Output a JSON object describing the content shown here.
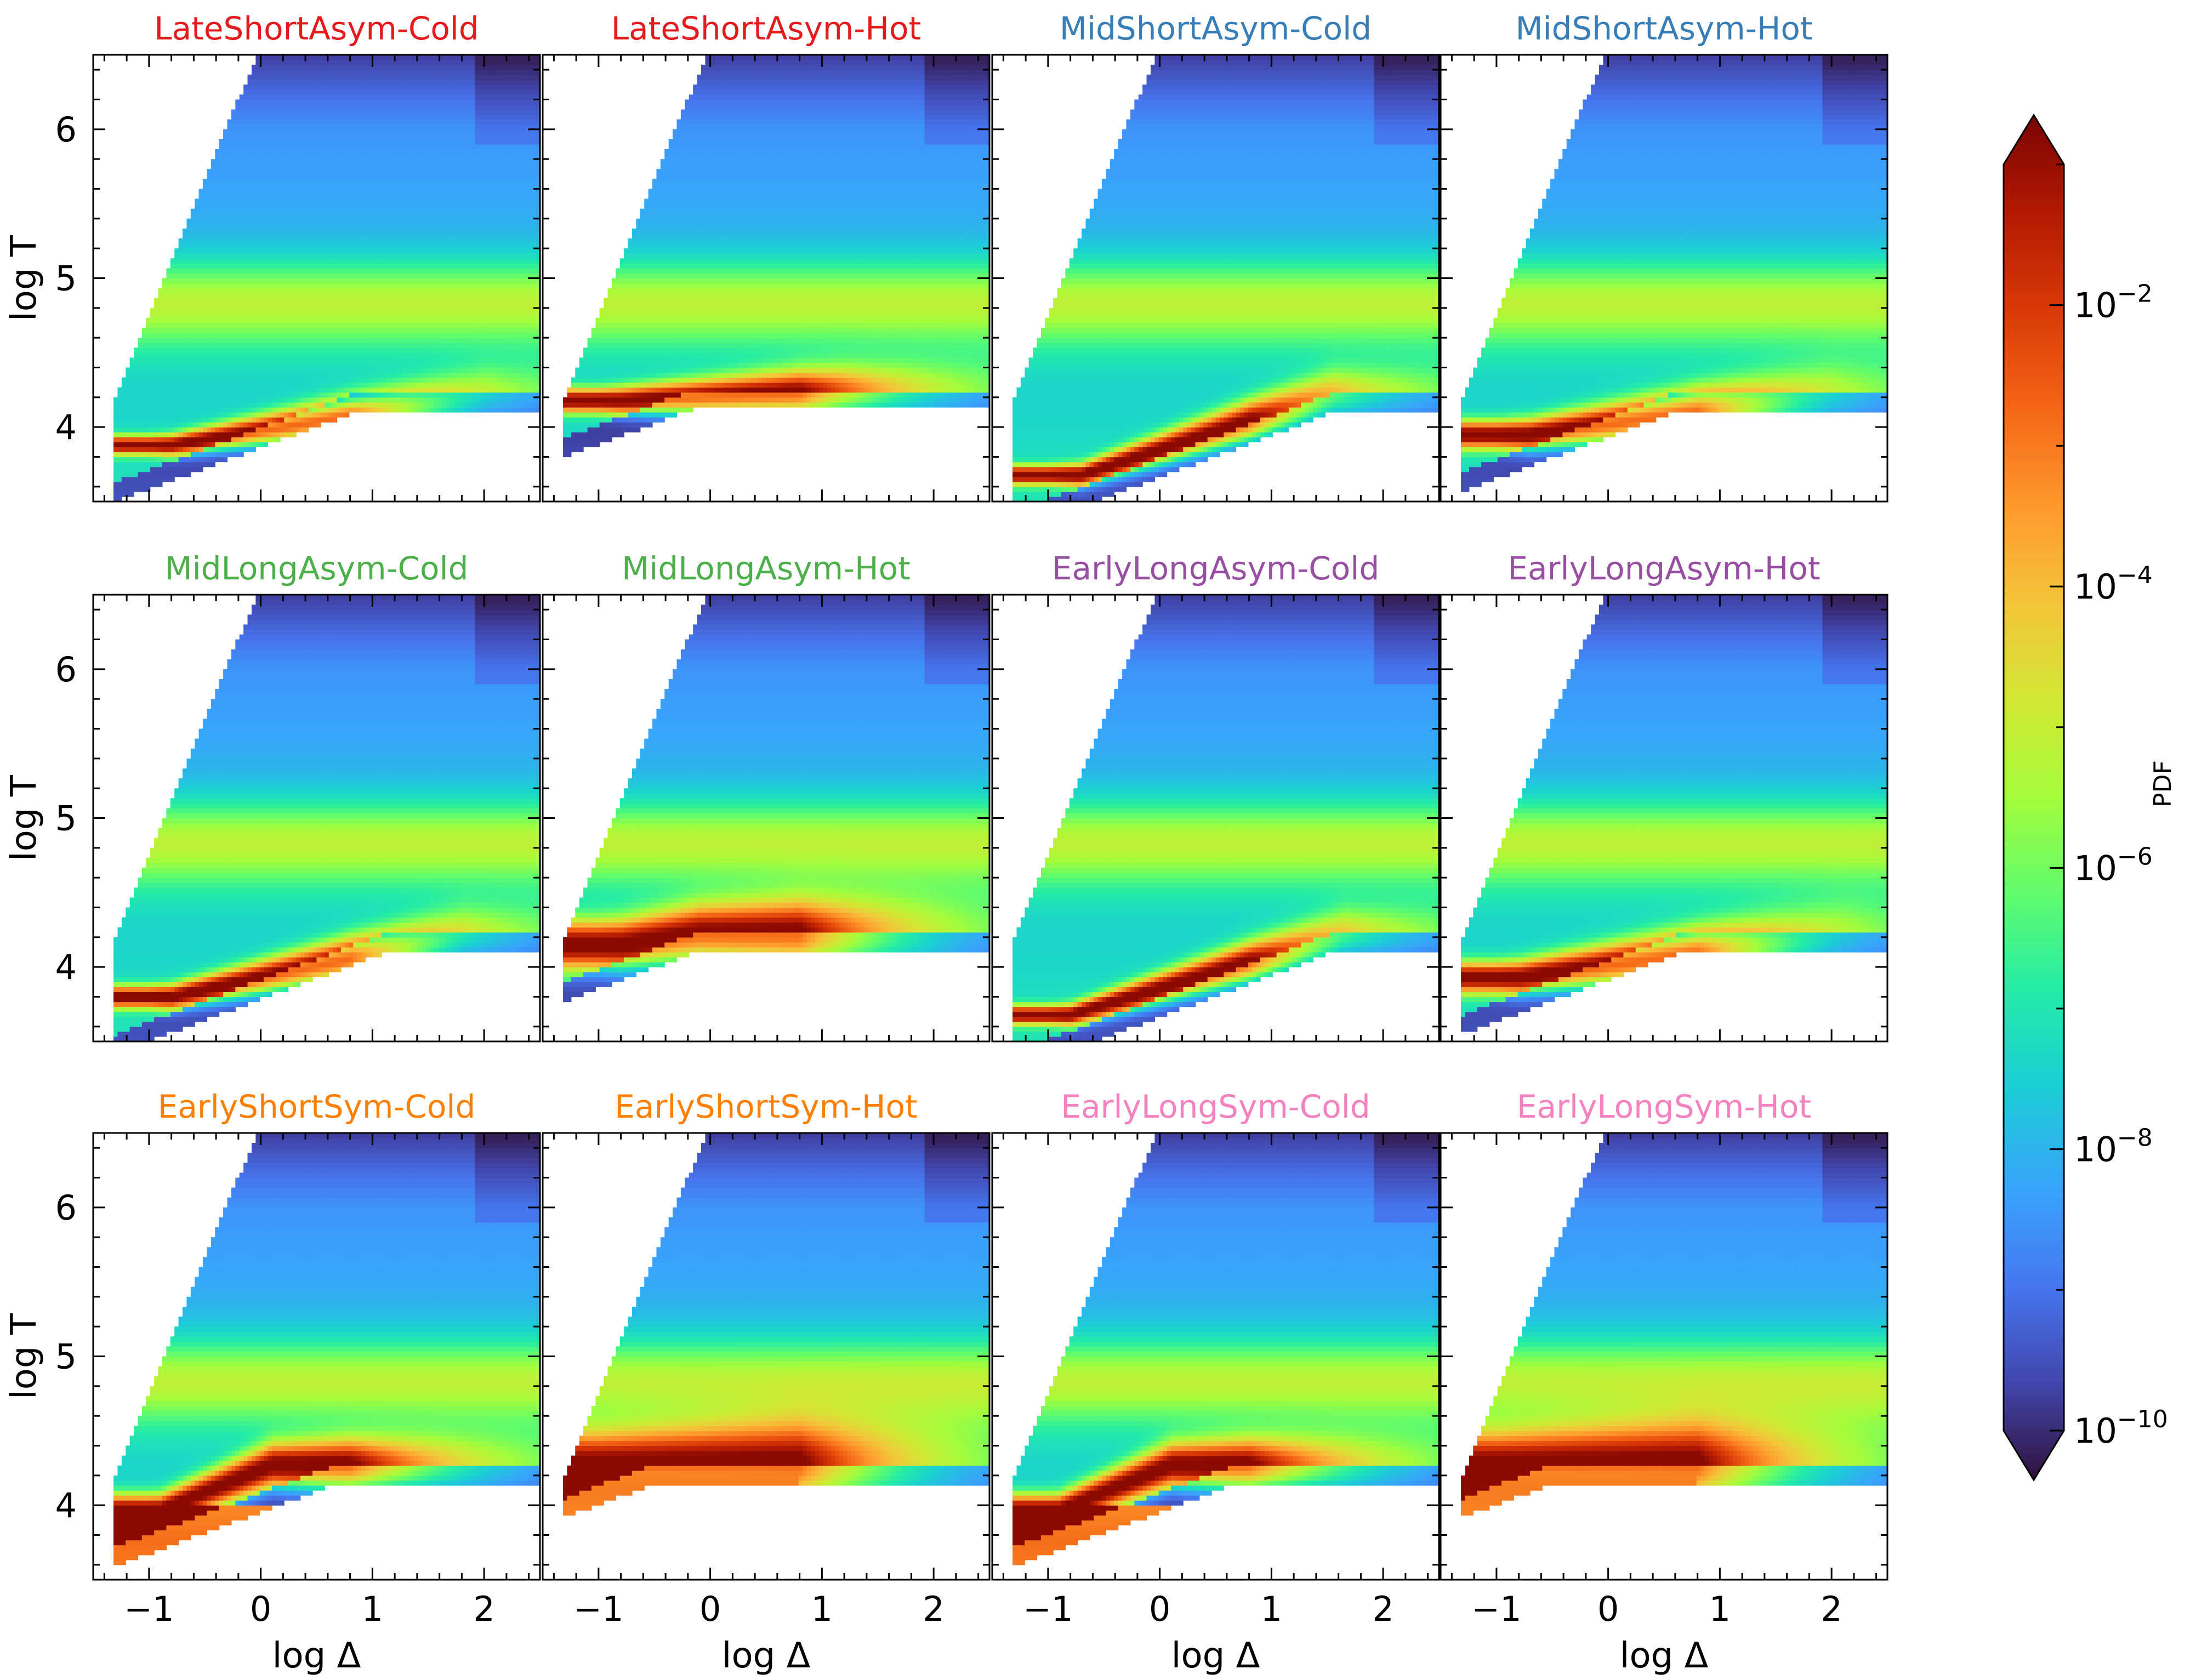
{
  "chart_data": {
    "type": "heatmap",
    "layout": {
      "rows": 3,
      "cols": 4,
      "shared_x": true,
      "shared_y": true
    },
    "xlabel": "log Δ",
    "ylabel": "log T",
    "xlim": [
      -1.5,
      2.5
    ],
    "ylim": [
      3.5,
      6.5
    ],
    "x_ticks": [
      -1,
      0,
      1,
      2
    ],
    "x_tick_labels": [
      "−1",
      "0",
      "1",
      "2"
    ],
    "y_ticks": [
      4,
      5,
      6
    ],
    "y_tick_labels": [
      "4",
      "5",
      "6"
    ],
    "colorbar": {
      "label": "PDF",
      "scale": "log",
      "colormap": "turbo",
      "range": [
        1e-10,
        0.1
      ],
      "extend": "both",
      "ticks": [
        1e-10,
        1e-08,
        1e-06,
        0.0001,
        0.01
      ],
      "tick_bases": [
        "10",
        "10",
        "10",
        "10",
        "10"
      ],
      "tick_exponents": [
        "−10",
        "−8",
        "−6",
        "−4",
        "−2"
      ]
    },
    "panels": [
      {
        "title": "LateShortAsym-Cold",
        "title_color": "#e41a1c",
        "t0": 3.88,
        "t1": 4.2,
        "peak_start": -0.8,
        "peak_slope": 0.12,
        "spread": 0.06,
        "plateau": false
      },
      {
        "title": "LateShortAsym-Hot",
        "title_color": "#e41a1c",
        "t0": 4.18,
        "t1": 4.22,
        "peak_start": -0.8,
        "peak_slope": 0.03,
        "spread": 0.08,
        "plateau": false
      },
      {
        "title": "MidShortAsym-Cold",
        "title_color": "#377eb8",
        "t0": 3.68,
        "t1": 4.2,
        "peak_start": -0.7,
        "peak_slope": 0.24,
        "spread": 0.06,
        "plateau": false
      },
      {
        "title": "MidShortAsym-Hot",
        "title_color": "#377eb8",
        "t0": 3.95,
        "t1": 4.2,
        "peak_start": -0.7,
        "peak_slope": 0.1,
        "spread": 0.09,
        "plateau": false
      },
      {
        "title": "MidLongAsym-Cold",
        "title_color": "#4daf4a",
        "t0": 3.8,
        "t1": 4.2,
        "peak_start": -0.8,
        "peak_slope": 0.16,
        "spread": 0.07,
        "plateau": false
      },
      {
        "title": "MidLongAsym-Hot",
        "title_color": "#4daf4a",
        "t0": 4.15,
        "t1": 4.2,
        "peak_start": -0.8,
        "peak_slope": 0.1,
        "spread": 0.16,
        "plateau": false
      },
      {
        "title": "EarlyLongAsym-Cold",
        "title_color": "#984ea3",
        "t0": 3.68,
        "t1": 4.2,
        "peak_start": -0.8,
        "peak_slope": 0.22,
        "spread": 0.06,
        "plateau": false
      },
      {
        "title": "EarlyLongAsym-Hot",
        "title_color": "#984ea3",
        "t0": 3.93,
        "t1": 4.2,
        "peak_start": -0.8,
        "peak_slope": 0.1,
        "spread": 0.1,
        "plateau": false
      },
      {
        "title": "EarlyShortSym-Cold",
        "title_color": "#ff7f00",
        "t0": 3.97,
        "t1": 4.25,
        "peak_start": -0.9,
        "peak_slope": 0.3,
        "spread": 0.1,
        "plateau": true
      },
      {
        "title": "EarlyShortSym-Hot",
        "title_color": "#ff7f00",
        "t0": 4.3,
        "t1": 4.25,
        "peak_start": -0.9,
        "peak_slope": 0.18,
        "spread": 0.22,
        "plateau": true
      },
      {
        "title": "EarlyLongSym-Cold",
        "title_color": "#f781bf",
        "t0": 3.97,
        "t1": 4.25,
        "peak_start": -0.9,
        "peak_slope": 0.3,
        "spread": 0.1,
        "plateau": true
      },
      {
        "title": "EarlyLongSym-Hot",
        "title_color": "#f781bf",
        "t0": 4.3,
        "t1": 4.25,
        "peak_start": -0.9,
        "peak_slope": 0.18,
        "spread": 0.22,
        "plateau": true
      }
    ]
  }
}
